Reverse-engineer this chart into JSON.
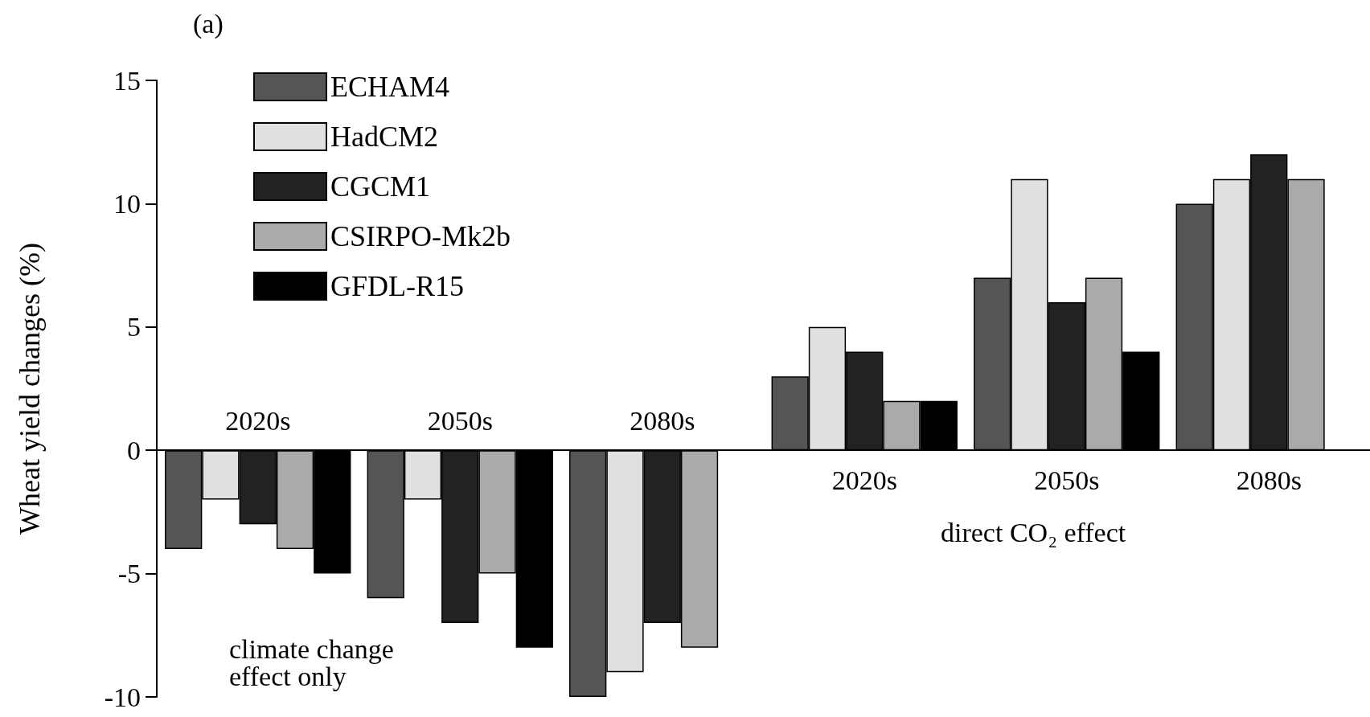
{
  "chart_data": {
    "type": "bar",
    "ylabel": "Wheat yield changes (%)",
    "categories": [
      "2020s",
      "2050s",
      "2080s",
      "2020s",
      "2050s",
      "2080s"
    ],
    "series": [
      {
        "name": "ECHAM4",
        "color": "#555555",
        "values": [
          -4,
          -6,
          -10,
          3,
          7,
          10
        ]
      },
      {
        "name": "HadCM2",
        "color": "#e0e0e0",
        "values": [
          -2,
          -2,
          -9,
          5,
          11,
          11
        ]
      },
      {
        "name": "CGCM1",
        "color": "#222222",
        "values": [
          -3,
          -7,
          -7,
          4,
          6,
          12
        ]
      },
      {
        "name": "CSIRPO-Mk2b",
        "color": "#aaaaaa",
        "values": [
          -4,
          -5,
          -8,
          2,
          7,
          11
        ]
      },
      {
        "name": "GFDL-R15",
        "color": "#000000",
        "values": [
          -5,
          -8,
          null,
          2,
          4,
          null
        ]
      }
    ],
    "ylim": [
      -10,
      15
    ],
    "yticks": [
      -10,
      -5,
      0,
      5,
      10,
      15
    ],
    "grid": false,
    "legend": "top left",
    "annotations": [
      "(a)",
      "climate change effect only",
      "direct CO₂ effect"
    ]
  }
}
